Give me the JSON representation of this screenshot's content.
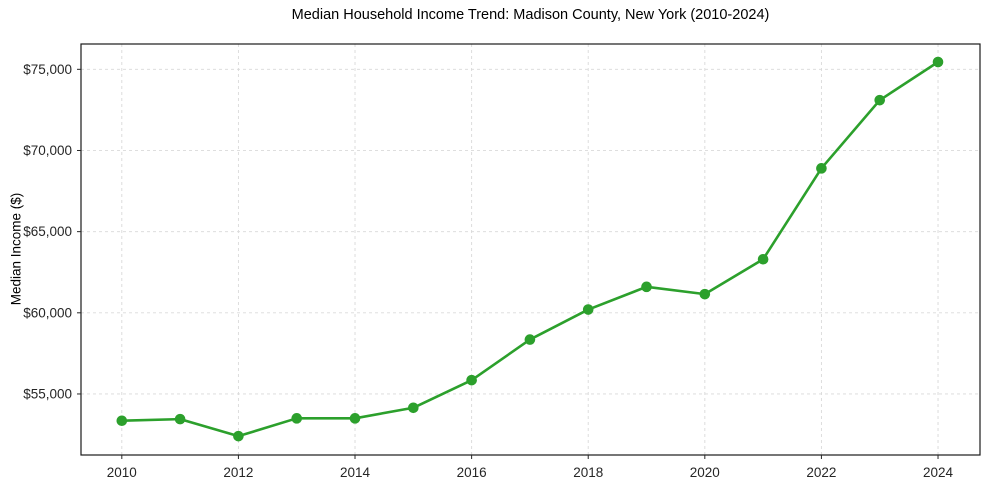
{
  "chart_data": {
    "type": "line",
    "title": "Median Household Income Trend: Madison County, New York (2010-2024)",
    "xlabel": "",
    "ylabel": "Median Income ($)",
    "x": [
      2010,
      2011,
      2012,
      2013,
      2014,
      2015,
      2016,
      2017,
      2018,
      2019,
      2020,
      2021,
      2022,
      2023,
      2024
    ],
    "values": [
      53350,
      53450,
      52400,
      53500,
      53500,
      54150,
      55850,
      58350,
      60200,
      61600,
      61150,
      63300,
      68900,
      73100,
      75450
    ],
    "series_name": "Median Household Income",
    "x_ticks": [
      2010,
      2012,
      2014,
      2016,
      2018,
      2020,
      2022,
      2024
    ],
    "x_tick_labels": [
      "2010",
      "2012",
      "2014",
      "2016",
      "2018",
      "2020",
      "2022",
      "2024"
    ],
    "y_ticks": [
      55000,
      60000,
      65000,
      70000,
      75000
    ],
    "y_tick_labels": [
      "$55,000",
      "$60,000",
      "$65,000",
      "$70,000",
      "$75,000"
    ],
    "xlim": [
      2009.3,
      2024.72
    ],
    "ylim": [
      51240,
      76560
    ],
    "grid": "dashed-both-axes",
    "legend": "none",
    "line_color": "#2ca02c",
    "marker": "circle",
    "grid_color": "#d9d9d9",
    "frame_color": "#1a1a1a",
    "tick_color": "#262626",
    "background_color": "#ffffff"
  }
}
